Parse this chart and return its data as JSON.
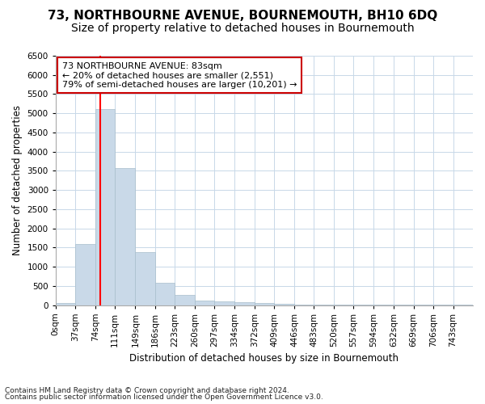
{
  "title": "73, NORTHBOURNE AVENUE, BOURNEMOUTH, BH10 6DQ",
  "subtitle": "Size of property relative to detached houses in Bournemouth",
  "xlabel": "Distribution of detached houses by size in Bournemouth",
  "ylabel": "Number of detached properties",
  "footnote1": "Contains HM Land Registry data © Crown copyright and database right 2024.",
  "footnote2": "Contains public sector information licensed under the Open Government Licence v3.0.",
  "annotation_title": "73 NORTHBOURNE AVENUE: 83sqm",
  "annotation_line1": "← 20% of detached houses are smaller (2,551)",
  "annotation_line2": "79% of semi-detached houses are larger (10,201) →",
  "bar_color": "#c9d9e8",
  "bar_edge_color": "#a8becc",
  "vline_color": "red",
  "vline_x": 83,
  "categories": [
    "0sqm",
    "37sqm",
    "74sqm",
    "111sqm",
    "149sqm",
    "186sqm",
    "223sqm",
    "260sqm",
    "297sqm",
    "334sqm",
    "372sqm",
    "409sqm",
    "446sqm",
    "483sqm",
    "520sqm",
    "557sqm",
    "594sqm",
    "632sqm",
    "669sqm",
    "706sqm",
    "743sqm"
  ],
  "bin_edges": [
    0,
    37,
    74,
    111,
    149,
    186,
    223,
    260,
    297,
    334,
    372,
    409,
    446,
    483,
    520,
    557,
    594,
    632,
    669,
    706,
    743,
    780
  ],
  "values": [
    55,
    1600,
    5100,
    3580,
    1390,
    590,
    270,
    125,
    95,
    75,
    48,
    28,
    18,
    9,
    7,
    4,
    3,
    2,
    2,
    2,
    1
  ],
  "ylim": [
    0,
    6500
  ],
  "yticks": [
    0,
    500,
    1000,
    1500,
    2000,
    2500,
    3000,
    3500,
    4000,
    4500,
    5000,
    5500,
    6000,
    6500
  ],
  "background_color": "#ffffff",
  "grid_color": "#c8d8e8",
  "annotation_box_color": "#ffffff",
  "annotation_box_edge": "#cc0000",
  "title_fontsize": 11,
  "subtitle_fontsize": 10,
  "axis_label_fontsize": 8.5,
  "tick_fontsize": 7.5,
  "annotation_fontsize": 8,
  "footnote_fontsize": 6.5
}
